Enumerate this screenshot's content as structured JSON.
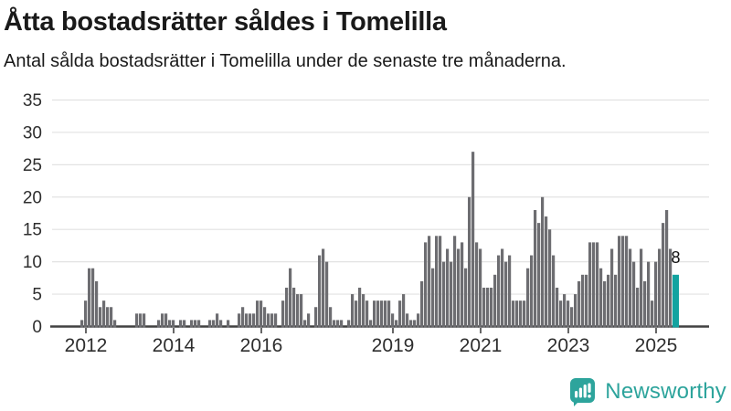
{
  "header": {
    "title": "Åtta bostadsrätter såldes i Tomelilla",
    "subtitle": "Antal sålda bostadsrätter i Tomelilla under de senaste tre månaderna."
  },
  "chart_data": {
    "type": "bar",
    "title": "Åtta bostadsrätter såldes i Tomelilla",
    "subtitle": "Antal sålda bostadsrätter i Tomelilla under de senaste tre månaderna.",
    "x_start_month": "2011-12",
    "ylim": [
      0,
      35
    ],
    "y_ticks": [
      0,
      5,
      10,
      15,
      20,
      25,
      30,
      35
    ],
    "x_tick_labels": [
      "2012",
      "2014",
      "2016",
      "2019",
      "2021",
      "2023",
      "2025"
    ],
    "x_tick_month_indices": [
      1,
      25,
      49,
      85,
      109,
      133,
      157
    ],
    "grid": true,
    "legend": false,
    "values": [
      1,
      4,
      9,
      9,
      7,
      3,
      4,
      3,
      3,
      1,
      0,
      0,
      0,
      0,
      0,
      2,
      2,
      2,
      0,
      0,
      0,
      1,
      2,
      2,
      1,
      1,
      0,
      1,
      1,
      0,
      1,
      1,
      1,
      0,
      0,
      1,
      1,
      2,
      1,
      0,
      1,
      0,
      0,
      2,
      3,
      2,
      2,
      2,
      4,
      4,
      3,
      2,
      2,
      2,
      0,
      4,
      6,
      9,
      6,
      5,
      5,
      1,
      2,
      0,
      3,
      11,
      12,
      10,
      3,
      1,
      1,
      1,
      0,
      1,
      5,
      4,
      6,
      5,
      4,
      1,
      4,
      4,
      4,
      4,
      4,
      2,
      1,
      4,
      5,
      2,
      1,
      1,
      2,
      7,
      13,
      14,
      9,
      14,
      14,
      10,
      12,
      10,
      14,
      12,
      13,
      9,
      20,
      27,
      13,
      12,
      6,
      6,
      6,
      8,
      11,
      12,
      10,
      11,
      4,
      4,
      4,
      4,
      9,
      11,
      18,
      16,
      20,
      17,
      15,
      11,
      6,
      4,
      5,
      4,
      3,
      5,
      7,
      8,
      8,
      13,
      13,
      13,
      9,
      7,
      8,
      12,
      8,
      14,
      14,
      14,
      12,
      10,
      6,
      12,
      7,
      10,
      4,
      10,
      12,
      16,
      18,
      12,
      8
    ],
    "highlight_index": 162,
    "highlight_label": "8",
    "bar_color": "#6d6d71",
    "highlight_color": "#13a3a0",
    "axis_color": "#414141",
    "grid_color": "#e2e2e2",
    "tick_label_color": "#2e2e2e"
  },
  "footer": {
    "brand_name": "Newsworthy",
    "brand_color": "#2da49c"
  }
}
